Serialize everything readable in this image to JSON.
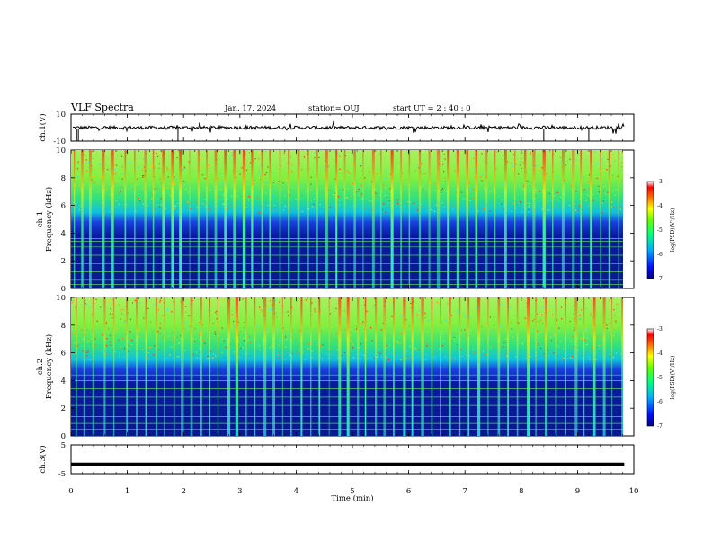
{
  "header": {
    "title": "VLF Spectra",
    "date": "Jan. 17, 2024",
    "station": "station= OUJ",
    "start": "start  UT =   2 : 40 : 0"
  },
  "colors": {
    "waveform": "#000000",
    "spectro_bg": "#0a1a9a",
    "band_line": "#5ff05f"
  },
  "chart_data": [
    {
      "type": "line",
      "name": "ch1-waveform",
      "ylabel": "ch.1(V)",
      "ylim": [
        -10,
        10
      ],
      "yticks": [
        "10",
        "-10"
      ],
      "x_range_min": [
        0,
        9.83
      ],
      "typical_level": 0,
      "noise_amplitude": 1.2
    },
    {
      "type": "heatmap",
      "name": "ch1-spectrogram",
      "ylabel_channel": "ch.1",
      "ylabel": "Frequency (kHz)",
      "ylim": [
        0,
        10
      ],
      "yticks": [
        "0",
        "2",
        "4",
        "6",
        "8",
        "10"
      ],
      "colorbar": {
        "label": "log(PSD)(V²/Hz)",
        "range": [
          -7,
          -3
        ],
        "ticks": [
          "-3",
          "-4",
          "-5",
          "-6",
          "-7"
        ]
      },
      "background_log_psd_below_5kHz": -6.8,
      "background_log_psd_above_6kHz": -4.6,
      "band_lines_kHz": [
        0.3,
        0.6,
        1.2,
        1.8,
        2.4,
        3.0,
        3.4,
        3.6
      ],
      "sferic_times_min": [
        0.05,
        0.18,
        0.32,
        0.55,
        0.72,
        0.95,
        1.12,
        1.3,
        1.45,
        1.62,
        1.78,
        1.92,
        2.1,
        2.25,
        2.4,
        2.55,
        2.72,
        2.88,
        3.05,
        3.2,
        3.38,
        3.52,
        3.7,
        3.85,
        4.02,
        4.2,
        4.35,
        4.52,
        4.7,
        4.85,
        5.02,
        5.18,
        5.35,
        5.5,
        5.68,
        5.85,
        6.0,
        6.18,
        6.35,
        6.5,
        6.68,
        6.85,
        7.02,
        7.18,
        7.35,
        7.52,
        7.7,
        7.88,
        8.05,
        8.2,
        8.38,
        8.55,
        8.72,
        8.9,
        9.05,
        9.22,
        9.4,
        9.55,
        9.72
      ]
    },
    {
      "type": "heatmap",
      "name": "ch2-spectrogram",
      "ylabel_channel": "ch.2",
      "ylabel": "Frequency (kHz)",
      "ylim": [
        0,
        10
      ],
      "yticks": [
        "0",
        "2",
        "4",
        "6",
        "8",
        "10"
      ],
      "colorbar": {
        "label": "log(PSD)(V²/Hz)",
        "range": [
          -7,
          -3
        ],
        "ticks": [
          "-3",
          "-4",
          "-5",
          "-6",
          "-7"
        ]
      },
      "background_log_psd_below_5kHz": -6.8,
      "background_log_psd_above_6kHz": -4.6,
      "band_lines_kHz": [
        0.5,
        0.9,
        1.4,
        2.2,
        2.8,
        3.4,
        4.0,
        4.4
      ],
      "sferic_times_min": [
        0.08,
        0.22,
        0.38,
        0.58,
        0.75,
        0.98,
        1.15,
        1.32,
        1.5,
        1.65,
        1.82,
        1.95,
        2.12,
        2.3,
        2.45,
        2.6,
        2.78,
        2.92,
        3.1,
        3.25,
        3.42,
        3.58,
        3.75,
        3.9,
        4.08,
        4.25,
        4.4,
        4.58,
        4.75,
        4.9,
        5.08,
        5.22,
        5.4,
        5.55,
        5.72,
        5.9,
        6.05,
        6.22,
        6.4,
        6.55,
        6.72,
        6.9,
        7.05,
        7.22,
        7.4,
        7.58,
        7.75,
        7.92,
        8.1,
        8.25,
        8.42,
        8.6,
        8.78,
        8.95,
        9.1,
        9.28,
        9.45,
        9.6,
        9.78
      ]
    },
    {
      "type": "line",
      "name": "ch3-waveform",
      "ylabel": "ch.3(V)",
      "ylim": [
        -5,
        5
      ],
      "yticks": [
        "5",
        "-5"
      ],
      "x_range_min": [
        0,
        9.83
      ],
      "constant_value": -1.8
    }
  ],
  "x_axis": {
    "label": "Time (min)",
    "range": [
      0,
      10
    ],
    "ticks": [
      "0",
      "1",
      "2",
      "3",
      "4",
      "5",
      "6",
      "7",
      "8",
      "9",
      "10"
    ]
  }
}
